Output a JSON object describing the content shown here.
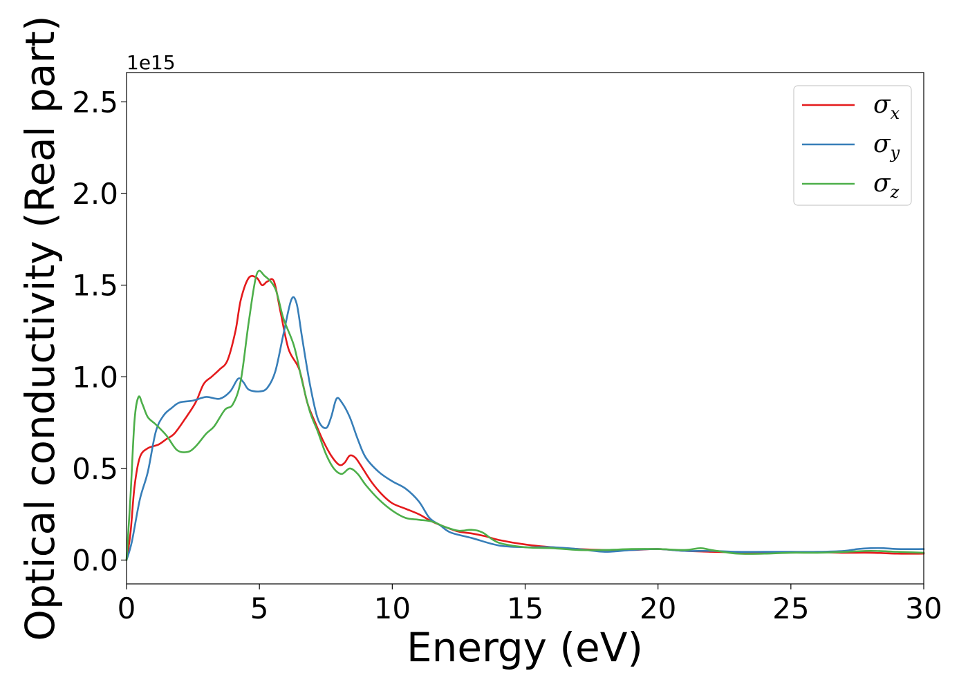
{
  "chart_data": {
    "type": "line",
    "xlabel": "Energy (eV)",
    "ylabel": "Optical conductivity (Real part)",
    "y_offset_label": "1e15",
    "xlim": [
      0,
      30
    ],
    "ylim": [
      -0.13,
      2.66
    ],
    "x_ticks": [
      0,
      5,
      10,
      15,
      20,
      25,
      30
    ],
    "x_tick_labels": [
      "0",
      "5",
      "10",
      "15",
      "20",
      "25",
      "30"
    ],
    "y_ticks": [
      0.0,
      0.5,
      1.0,
      1.5,
      2.0,
      2.5
    ],
    "y_tick_labels": [
      "0.0",
      "0.5",
      "1.0",
      "1.5",
      "2.0",
      "2.5"
    ],
    "grid": false,
    "legend_position": "top-right",
    "series": [
      {
        "name": "σx",
        "legend_symbol": "σ",
        "legend_subscript": "x",
        "color": "#e41a1c",
        "points": [
          [
            0,
            0
          ],
          [
            0.15,
            0.15
          ],
          [
            0.3,
            0.4
          ],
          [
            0.5,
            0.56
          ],
          [
            0.8,
            0.61
          ],
          [
            1.2,
            0.63
          ],
          [
            1.5,
            0.66
          ],
          [
            1.8,
            0.69
          ],
          [
            2.2,
            0.77
          ],
          [
            2.6,
            0.86
          ],
          [
            2.9,
            0.96
          ],
          [
            3.2,
            1.0
          ],
          [
            3.5,
            1.04
          ],
          [
            3.8,
            1.09
          ],
          [
            4.1,
            1.25
          ],
          [
            4.3,
            1.42
          ],
          [
            4.6,
            1.54
          ],
          [
            4.9,
            1.54
          ],
          [
            5.1,
            1.5
          ],
          [
            5.3,
            1.52
          ],
          [
            5.55,
            1.52
          ],
          [
            5.8,
            1.35
          ],
          [
            6.1,
            1.15
          ],
          [
            6.5,
            1.04
          ],
          [
            6.8,
            0.86
          ],
          [
            7.1,
            0.75
          ],
          [
            7.4,
            0.65
          ],
          [
            7.7,
            0.57
          ],
          [
            8.0,
            0.52
          ],
          [
            8.2,
            0.53
          ],
          [
            8.4,
            0.57
          ],
          [
            8.6,
            0.56
          ],
          [
            8.8,
            0.52
          ],
          [
            9.2,
            0.43
          ],
          [
            9.6,
            0.36
          ],
          [
            10.0,
            0.31
          ],
          [
            10.5,
            0.28
          ],
          [
            11.0,
            0.25
          ],
          [
            11.5,
            0.21
          ],
          [
            12.0,
            0.18
          ],
          [
            12.5,
            0.155
          ],
          [
            13.0,
            0.145
          ],
          [
            13.5,
            0.13
          ],
          [
            14.0,
            0.11
          ],
          [
            15.0,
            0.085
          ],
          [
            16.0,
            0.07
          ],
          [
            17.0,
            0.06
          ],
          [
            18.0,
            0.055
          ],
          [
            19.0,
            0.055
          ],
          [
            20.0,
            0.06
          ],
          [
            21.0,
            0.05
          ],
          [
            22.0,
            0.045
          ],
          [
            23.0,
            0.042
          ],
          [
            24.0,
            0.04
          ],
          [
            25.0,
            0.042
          ],
          [
            26.0,
            0.043
          ],
          [
            27.0,
            0.04
          ],
          [
            28.0,
            0.04
          ],
          [
            29.0,
            0.035
          ],
          [
            30.0,
            0.035
          ]
        ]
      },
      {
        "name": "σy",
        "legend_symbol": "σ",
        "legend_subscript": "y",
        "color": "#377eb8",
        "points": [
          [
            0,
            0
          ],
          [
            0.2,
            0.1
          ],
          [
            0.5,
            0.33
          ],
          [
            0.8,
            0.48
          ],
          [
            1.1,
            0.7
          ],
          [
            1.4,
            0.79
          ],
          [
            1.7,
            0.83
          ],
          [
            2.0,
            0.86
          ],
          [
            2.5,
            0.87
          ],
          [
            3.0,
            0.89
          ],
          [
            3.5,
            0.88
          ],
          [
            3.9,
            0.92
          ],
          [
            4.2,
            0.99
          ],
          [
            4.4,
            0.97
          ],
          [
            4.6,
            0.93
          ],
          [
            5.0,
            0.92
          ],
          [
            5.3,
            0.94
          ],
          [
            5.6,
            1.03
          ],
          [
            5.9,
            1.23
          ],
          [
            6.2,
            1.42
          ],
          [
            6.4,
            1.4
          ],
          [
            6.6,
            1.22
          ],
          [
            6.9,
            0.96
          ],
          [
            7.2,
            0.77
          ],
          [
            7.5,
            0.72
          ],
          [
            7.7,
            0.78
          ],
          [
            7.9,
            0.88
          ],
          [
            8.1,
            0.86
          ],
          [
            8.4,
            0.78
          ],
          [
            8.7,
            0.66
          ],
          [
            9.0,
            0.56
          ],
          [
            9.5,
            0.48
          ],
          [
            10.0,
            0.43
          ],
          [
            10.5,
            0.39
          ],
          [
            11.0,
            0.32
          ],
          [
            11.4,
            0.23
          ],
          [
            11.8,
            0.19
          ],
          [
            12.2,
            0.15
          ],
          [
            13.0,
            0.12
          ],
          [
            14.0,
            0.08
          ],
          [
            15.0,
            0.07
          ],
          [
            16.0,
            0.07
          ],
          [
            17.0,
            0.06
          ],
          [
            18.0,
            0.045
          ],
          [
            19.0,
            0.055
          ],
          [
            20.0,
            0.06
          ],
          [
            21.0,
            0.05
          ],
          [
            22.0,
            0.05
          ],
          [
            23.0,
            0.045
          ],
          [
            24.0,
            0.045
          ],
          [
            25.0,
            0.045
          ],
          [
            26.0,
            0.045
          ],
          [
            27.0,
            0.05
          ],
          [
            27.5,
            0.06
          ],
          [
            28.0,
            0.065
          ],
          [
            28.5,
            0.065
          ],
          [
            29.0,
            0.06
          ],
          [
            30.0,
            0.06
          ]
        ]
      },
      {
        "name": "σz",
        "legend_symbol": "σ",
        "legend_subscript": "z",
        "color": "#4daf4a",
        "points": [
          [
            0,
            0
          ],
          [
            0.15,
            0.35
          ],
          [
            0.3,
            0.76
          ],
          [
            0.45,
            0.89
          ],
          [
            0.6,
            0.85
          ],
          [
            0.8,
            0.78
          ],
          [
            1.1,
            0.74
          ],
          [
            1.5,
            0.68
          ],
          [
            1.9,
            0.6
          ],
          [
            2.3,
            0.59
          ],
          [
            2.6,
            0.62
          ],
          [
            3.0,
            0.69
          ],
          [
            3.3,
            0.73
          ],
          [
            3.7,
            0.82
          ],
          [
            4.0,
            0.85
          ],
          [
            4.3,
            0.98
          ],
          [
            4.6,
            1.3
          ],
          [
            4.9,
            1.56
          ],
          [
            5.2,
            1.55
          ],
          [
            5.6,
            1.48
          ],
          [
            5.9,
            1.32
          ],
          [
            6.3,
            1.17
          ],
          [
            6.6,
            0.98
          ],
          [
            6.9,
            0.81
          ],
          [
            7.2,
            0.7
          ],
          [
            7.5,
            0.58
          ],
          [
            7.8,
            0.5
          ],
          [
            8.1,
            0.47
          ],
          [
            8.4,
            0.5
          ],
          [
            8.7,
            0.47
          ],
          [
            9.0,
            0.41
          ],
          [
            9.5,
            0.33
          ],
          [
            10.0,
            0.27
          ],
          [
            10.5,
            0.23
          ],
          [
            11.0,
            0.22
          ],
          [
            11.5,
            0.21
          ],
          [
            12.0,
            0.18
          ],
          [
            12.5,
            0.16
          ],
          [
            13.0,
            0.165
          ],
          [
            13.4,
            0.15
          ],
          [
            14.0,
            0.095
          ],
          [
            15.0,
            0.07
          ],
          [
            16.0,
            0.065
          ],
          [
            17.0,
            0.055
          ],
          [
            18.0,
            0.055
          ],
          [
            19.0,
            0.06
          ],
          [
            20.0,
            0.06
          ],
          [
            21.0,
            0.055
          ],
          [
            21.6,
            0.065
          ],
          [
            22.0,
            0.055
          ],
          [
            23.0,
            0.035
          ],
          [
            24.0,
            0.035
          ],
          [
            25.0,
            0.04
          ],
          [
            26.0,
            0.04
          ],
          [
            27.0,
            0.045
          ],
          [
            28.0,
            0.05
          ],
          [
            29.0,
            0.045
          ],
          [
            30.0,
            0.04
          ]
        ]
      }
    ]
  }
}
